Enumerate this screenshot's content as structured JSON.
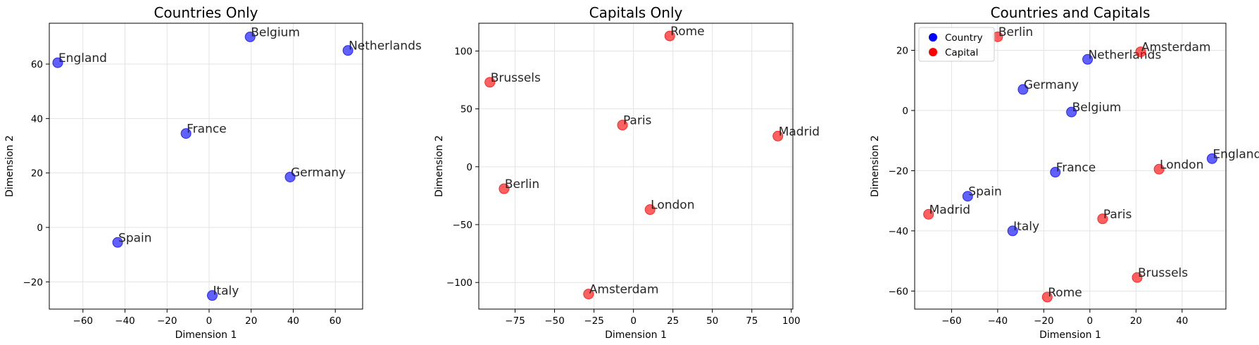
{
  "colors": {
    "country": "#0000ff",
    "capital": "#ff0000"
  },
  "chart_data": [
    {
      "type": "scatter",
      "title": "Countries Only",
      "xlabel": "Dimension 1",
      "ylabel": "Dimension 2",
      "xlim": [
        -76,
        73
      ],
      "ylim": [
        -30,
        75
      ],
      "xticks": [
        -60,
        -40,
        -20,
        0,
        20,
        40,
        60
      ],
      "yticks": [
        -20,
        0,
        20,
        40,
        60
      ],
      "grid": true,
      "series": [
        {
          "kind": "country",
          "points": [
            {
              "label": "England",
              "x": -72,
              "y": 60.5
            },
            {
              "label": "Belgium",
              "x": 19.5,
              "y": 70
            },
            {
              "label": "Netherlands",
              "x": 66,
              "y": 65
            },
            {
              "label": "France",
              "x": -11,
              "y": 34.5
            },
            {
              "label": "Germany",
              "x": 38.5,
              "y": 18.5
            },
            {
              "label": "Spain",
              "x": -43.5,
              "y": -5.5
            },
            {
              "label": "Italy",
              "x": 1.5,
              "y": -25
            }
          ]
        }
      ]
    },
    {
      "type": "scatter",
      "title": "Capitals Only",
      "xlabel": "Dimension 1",
      "ylabel": "Dimension 2",
      "xlim": [
        -98,
        101
      ],
      "ylim": [
        -123,
        124
      ],
      "xticks": [
        -75,
        -50,
        -25,
        0,
        25,
        50,
        75,
        100
      ],
      "yticks": [
        -100,
        -50,
        0,
        50,
        100
      ],
      "grid": true,
      "series": [
        {
          "kind": "capital",
          "points": [
            {
              "label": "Rome",
              "x": 23,
              "y": 113
            },
            {
              "label": "Brussels",
              "x": -91,
              "y": 73
            },
            {
              "label": "Paris",
              "x": -7,
              "y": 36
            },
            {
              "label": "Madrid",
              "x": 91.5,
              "y": 26.5
            },
            {
              "label": "Berlin",
              "x": -82,
              "y": -19
            },
            {
              "label": "London",
              "x": 10.5,
              "y": -37
            },
            {
              "label": "Amsterdam",
              "x": -28.5,
              "y": -110
            }
          ]
        }
      ]
    },
    {
      "type": "scatter",
      "title": "Countries and Capitals",
      "xlabel": "Dimension 1",
      "ylabel": "Dimension 2",
      "xlim": [
        -76,
        59
      ],
      "ylim": [
        -66,
        29
      ],
      "xticks": [
        -60,
        -40,
        -20,
        0,
        20,
        40
      ],
      "yticks": [
        -60,
        -40,
        -20,
        0,
        20
      ],
      "grid": true,
      "legend": {
        "placement": "top-left",
        "entries": [
          {
            "kind": "country",
            "label": "Country"
          },
          {
            "kind": "capital",
            "label": "Capital"
          }
        ]
      },
      "series": [
        {
          "kind": "country",
          "points": [
            {
              "label": "Netherlands",
              "x": -1,
              "y": 17
            },
            {
              "label": "Germany",
              "x": -29,
              "y": 7
            },
            {
              "label": "Belgium",
              "x": -8,
              "y": -0.5
            },
            {
              "label": "England",
              "x": 53,
              "y": -16
            },
            {
              "label": "France",
              "x": -15,
              "y": -20.5
            },
            {
              "label": "Spain",
              "x": -53,
              "y": -28.5
            },
            {
              "label": "Italy",
              "x": -33.5,
              "y": -40
            }
          ]
        },
        {
          "kind": "capital",
          "points": [
            {
              "label": "Berlin",
              "x": -40,
              "y": 24.5
            },
            {
              "label": "Amsterdam",
              "x": 22,
              "y": 19.5
            },
            {
              "label": "London",
              "x": 30,
              "y": -19.5
            },
            {
              "label": "Madrid",
              "x": -70,
              "y": -34.5
            },
            {
              "label": "Paris",
              "x": 5.5,
              "y": -36
            },
            {
              "label": "Brussels",
              "x": 20.5,
              "y": -55.5
            },
            {
              "label": "Rome",
              "x": -18.5,
              "y": -62
            }
          ]
        }
      ]
    }
  ]
}
